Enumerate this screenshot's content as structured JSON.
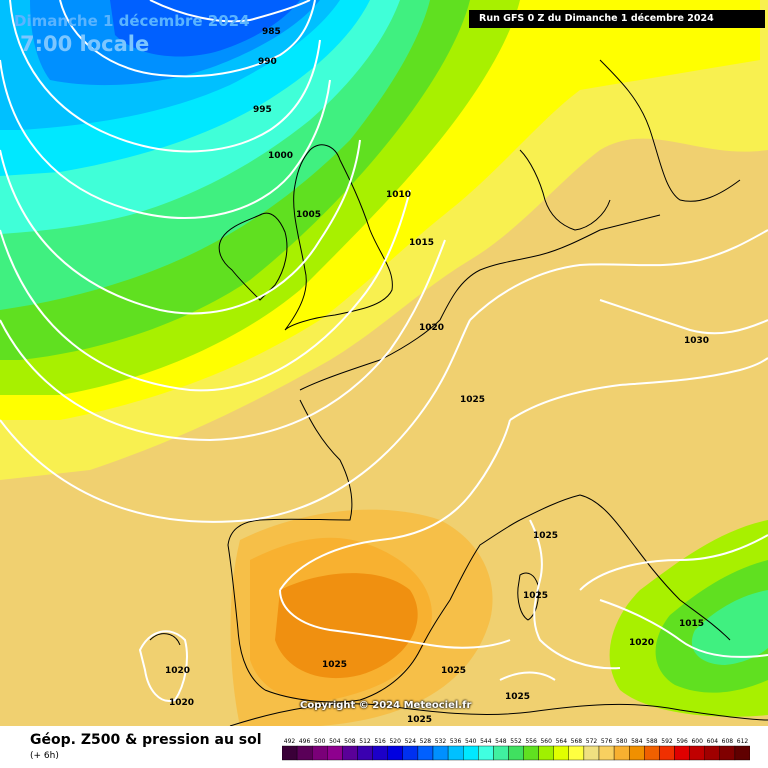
{
  "header": {
    "date": "Dimanche 1 décembre 2024",
    "time": "7:00 locale",
    "run": "Run GFS 0 Z du Dimanche 1 décembre 2024"
  },
  "copyright": "Copyright © 2024 Meteociel.fr",
  "footer": {
    "title": "Géop. Z500 & pression au sol",
    "subtitle": "(+ 6h)"
  },
  "isobar_labels": [
    "985",
    "990",
    "995",
    "1000",
    "1005",
    "1010",
    "1015",
    "1020",
    "1025",
    "1030"
  ],
  "legend": {
    "values": [
      "492",
      "496",
      "500",
      "504",
      "508",
      "512",
      "516",
      "520",
      "524",
      "528",
      "532",
      "536",
      "540",
      "544",
      "548",
      "552",
      "556",
      "560",
      "564",
      "568",
      "572",
      "576",
      "580",
      "584",
      "588",
      "592",
      "596",
      "600",
      "604",
      "608",
      "612"
    ],
    "colors": [
      "#3a0038",
      "#5a0058",
      "#7a0078",
      "#8e008e",
      "#5a0098",
      "#3a00b0",
      "#1c00c8",
      "#0000e0",
      "#0030f0",
      "#0060ff",
      "#0090ff",
      "#00c0ff",
      "#00e8ff",
      "#40ffe0",
      "#40f0a0",
      "#40e060",
      "#60e020",
      "#a0f000",
      "#e0ff00",
      "#ffff40",
      "#f0e080",
      "#f8d060",
      "#f8b030",
      "#f09000",
      "#f06000",
      "#f03000",
      "#e00000",
      "#c00000",
      "#a00000",
      "#800000",
      "#600000"
    ]
  }
}
